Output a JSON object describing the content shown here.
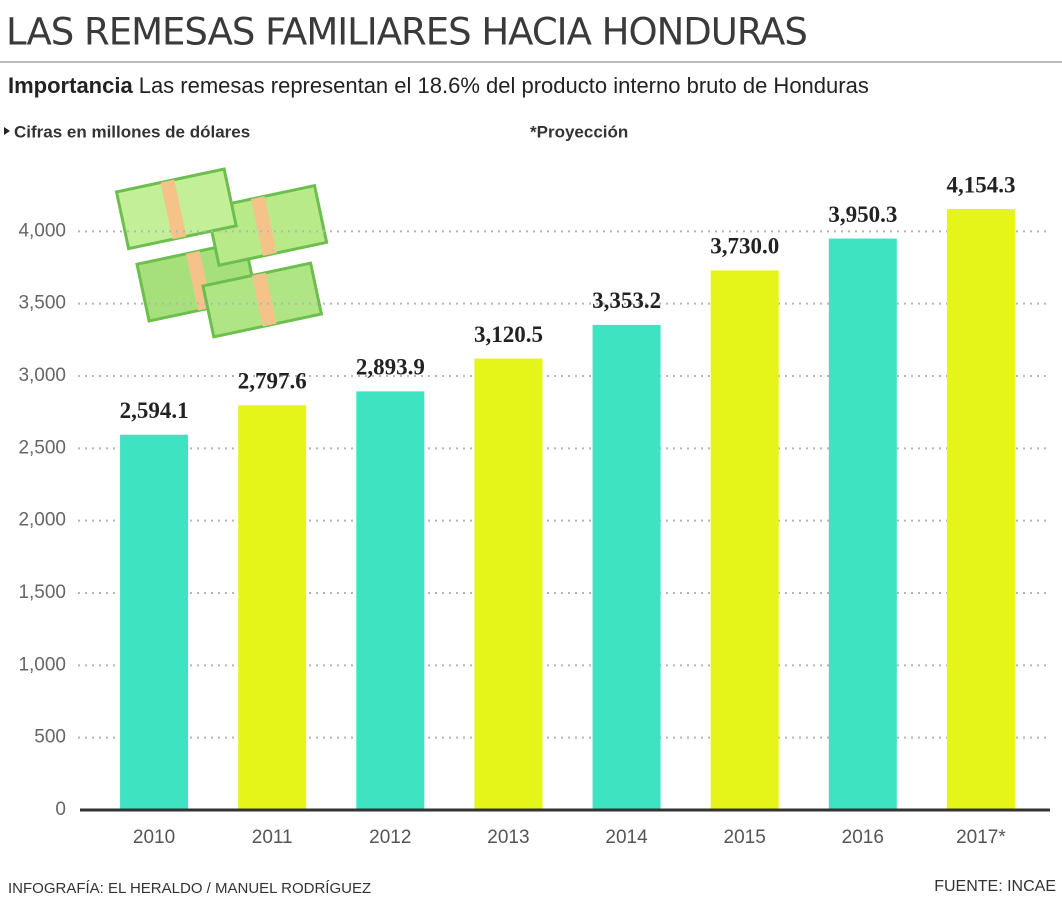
{
  "chart_data": {
    "type": "bar",
    "title": "LAS REMESAS FAMILIARES HACIA  HONDURAS",
    "subtitle_lead": "Importancia",
    "subtitle": "Las remesas representan el 18.6% del producto interno bruto de Honduras",
    "unit_note": "Cifras en millones de dólares",
    "projection_note": "*Proyección",
    "credit": "INFOGRAFÍA: EL HERALDO / MANUEL RODRÍGUEZ",
    "source": "FUENTE: INCAE",
    "categories": [
      "2010",
      "2011",
      "2012",
      "2013",
      "2014",
      "2015",
      "2016",
      "2017*"
    ],
    "values": [
      2594.1,
      2797.6,
      2893.9,
      3120.5,
      3353.2,
      3730.0,
      3950.3,
      4154.3
    ],
    "value_labels": [
      "2,594.1",
      "2,797.6",
      "2,893.9",
      "3,120.5",
      "3,353.2",
      "3,730.0",
      "3,950.3",
      "4,154.3"
    ],
    "colors": [
      "#3ee3c1",
      "#e5f519",
      "#3ee3c1",
      "#e5f519",
      "#3ee3c1",
      "#e5f519",
      "#3ee3c1",
      "#e5f519"
    ],
    "ylim": [
      0,
      4500
    ],
    "yticks": [
      0,
      500,
      {
        "value": 1000,
        "label": "1,000"
      },
      {
        "value": 1500,
        "label": "1,500"
      },
      {
        "value": 2000,
        "label": "2,000"
      },
      {
        "value": 2500,
        "label": "2,500"
      },
      {
        "value": 3000,
        "label": "3,000"
      },
      {
        "value": 3500,
        "label": "3,500"
      },
      {
        "value": 4000,
        "label": "4,000"
      }
    ],
    "grid": true
  }
}
